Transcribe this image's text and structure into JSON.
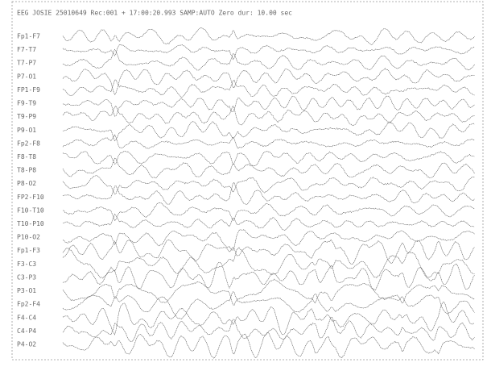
{
  "header": {
    "text": "EEG JOSIE 25010649 Rec:001   + 17:00:20.993  SAMP:AUTO Zero dur: 10.00 sec"
  },
  "channels": [
    "Fp1-F7",
    "F7-T7",
    "T7-P7",
    "P7-O1",
    "FP1-F9",
    "F9-T9",
    "T9-P9",
    "P9-O1",
    "Fp2-F8",
    "F8-T8",
    "T8-P8",
    "P8-O2",
    "FP2-F10",
    "F10-T10",
    "T10-P10",
    "P10-O2",
    "Fp1-F3",
    "F3-C3",
    "C3-P3",
    "P3-O1",
    "Fp2-F4",
    "F4-C4",
    "C4-P4",
    "P4-O2"
  ]
}
